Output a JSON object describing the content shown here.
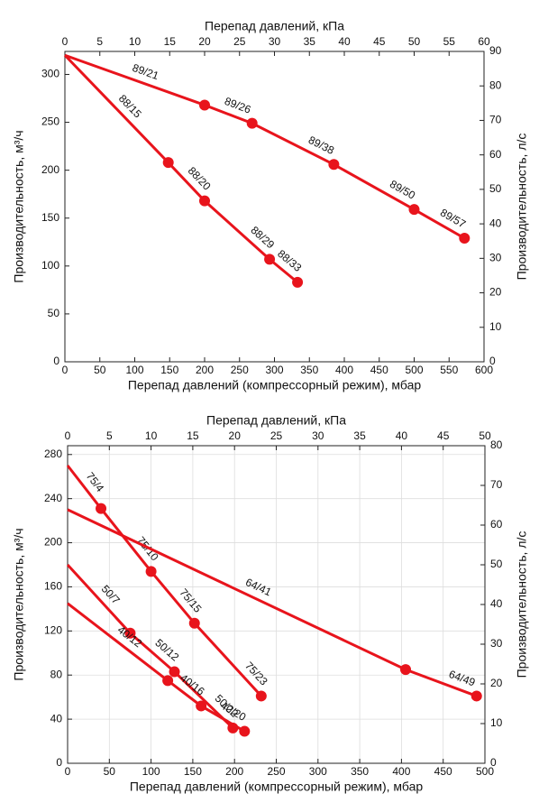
{
  "chart_data": [
    {
      "type": "line",
      "xlabel": "Перепад давлений (компрессорный режим), мбар",
      "x2label": "Перепад давлений, кПа",
      "ylabel": "Производительность, м³/ч",
      "y2label": "Производительность, л/с",
      "xlim": [
        0,
        600
      ],
      "xticks": [
        0,
        50,
        100,
        150,
        200,
        250,
        300,
        350,
        400,
        450,
        500,
        550,
        600
      ],
      "x2lim": [
        0,
        60
      ],
      "x2ticks": [
        0,
        5,
        10,
        15,
        20,
        25,
        30,
        35,
        40,
        45,
        50,
        55,
        60
      ],
      "ylim": [
        0,
        324
      ],
      "yticks": [
        0,
        50,
        100,
        150,
        200,
        250,
        300
      ],
      "y2lim": [
        0,
        90
      ],
      "y2ticks": [
        0,
        10,
        20,
        30,
        40,
        50,
        60,
        70,
        80,
        90
      ],
      "grid": false,
      "series": [
        {
          "color": "#e8141c",
          "x": [
            0,
            200,
            268,
            385,
            500,
            572
          ],
          "values": [
            320,
            268,
            249,
            206,
            159,
            129
          ],
          "point_labels": [
            null,
            "89/21",
            "89/26",
            "89/38",
            "89/50",
            "89/57"
          ]
        },
        {
          "color": "#e8141c",
          "x": [
            0,
            148,
            200,
            293,
            333
          ],
          "values": [
            320,
            208,
            168,
            107,
            83
          ],
          "point_labels": [
            null,
            "88/15",
            "88/20",
            "88/29",
            "88/33"
          ]
        }
      ]
    },
    {
      "type": "line",
      "xlabel": "Перепад давлений (компрессорный режим), мбар",
      "x2label": "Перепад давлений, кПа",
      "ylabel": "Производительность, м³/ч",
      "y2label": "Производительность, л/с",
      "xlim": [
        0,
        500
      ],
      "xticks": [
        0,
        50,
        100,
        150,
        200,
        250,
        300,
        350,
        400,
        450,
        500
      ],
      "x2lim": [
        0,
        50
      ],
      "x2ticks": [
        0,
        5,
        10,
        15,
        20,
        25,
        30,
        35,
        40,
        45,
        50
      ],
      "ylim": [
        0,
        288
      ],
      "yticks": [
        0,
        40,
        80,
        120,
        160,
        200,
        240,
        280
      ],
      "y2lim": [
        0,
        80
      ],
      "y2ticks": [
        0,
        10,
        20,
        30,
        40,
        50,
        60,
        70,
        80
      ],
      "grid": true,
      "series": [
        {
          "color": "#e8141c",
          "x": [
            0,
            40,
            100,
            152,
            232
          ],
          "values": [
            270,
            231,
            174,
            127,
            61
          ],
          "point_labels": [
            null,
            "75/4",
            "75/10",
            "75/15",
            "75/23"
          ]
        },
        {
          "color": "#e8141c",
          "x": [
            0,
            405,
            490
          ],
          "values": [
            230,
            85,
            61
          ],
          "point_labels": [
            null,
            "64/41",
            "64/49"
          ]
        },
        {
          "color": "#e8141c",
          "x": [
            0,
            75,
            128,
            198
          ],
          "values": [
            180,
            118,
            83,
            32
          ],
          "point_labels": [
            null,
            "50/7",
            "50/12",
            "50/22"
          ]
        },
        {
          "color": "#e8141c",
          "x": [
            0,
            120,
            160,
            212
          ],
          "values": [
            145,
            75,
            52,
            29
          ],
          "point_labels": [
            null,
            "40/12",
            "40/16",
            "40/20"
          ]
        }
      ]
    }
  ]
}
